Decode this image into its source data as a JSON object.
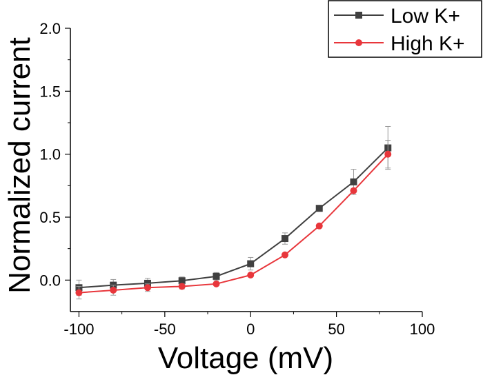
{
  "chart_data": {
    "type": "line",
    "xlabel": "Voltage (mV)",
    "ylabel": "Normalized current",
    "xlim": [
      -105,
      100
    ],
    "ylim": [
      -0.25,
      2.0
    ],
    "x_ticks": [
      -100,
      -50,
      0,
      50,
      100
    ],
    "y_ticks": [
      0.0,
      0.5,
      1.0,
      1.5,
      2.0
    ],
    "x_tick_labels": [
      "-100",
      "-50",
      "0",
      "50",
      "100"
    ],
    "y_tick_labels": [
      "0.0",
      "0.5",
      "1.0",
      "1.5",
      "2.0"
    ],
    "legend_position": "top-right",
    "grid": false,
    "x": [
      -100,
      -80,
      -60,
      -40,
      -20,
      0,
      20,
      40,
      60,
      80
    ],
    "series": [
      {
        "name": "Low K+",
        "color": "#404040",
        "marker": "square",
        "values": [
          -0.06,
          -0.04,
          -0.025,
          -0.005,
          0.03,
          0.13,
          0.33,
          0.57,
          0.78,
          1.05
        ],
        "errors": [
          0.06,
          0.045,
          0.04,
          0.03,
          0.03,
          0.05,
          0.045,
          0.015,
          0.1,
          0.17
        ]
      },
      {
        "name": "High K+",
        "color": "#e8363b",
        "marker": "circle",
        "values": [
          -0.1,
          -0.08,
          -0.06,
          -0.05,
          -0.03,
          0.04,
          0.2,
          0.43,
          0.71,
          1.0
        ],
        "errors": [
          0.05,
          0.04,
          0.03,
          0.02,
          0.01,
          0.01,
          0.01,
          0.01,
          0.01,
          0.11
        ]
      }
    ]
  }
}
